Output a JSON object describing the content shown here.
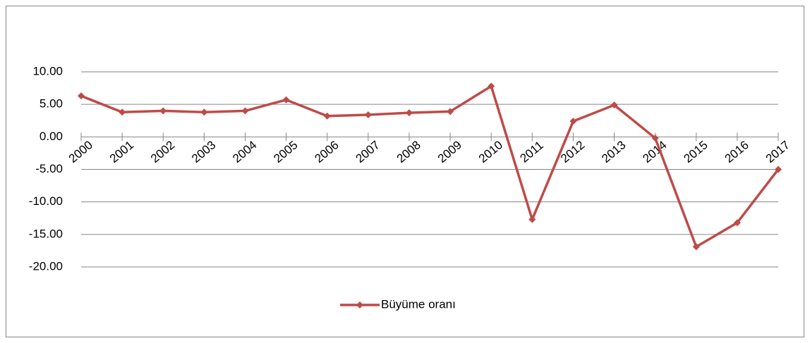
{
  "chart_data": {
    "type": "line",
    "categories": [
      "2000",
      "2001",
      "2002",
      "2003",
      "2004",
      "2005",
      "2006",
      "2007",
      "2008",
      "2009",
      "2010",
      "2011",
      "2012",
      "2013",
      "2014",
      "2015",
      "2016",
      "2017"
    ],
    "series": [
      {
        "name": "Büyüme oranı",
        "color": "#be4b48",
        "values": [
          6.3,
          3.8,
          4.0,
          3.8,
          4.0,
          5.7,
          3.2,
          3.4,
          3.7,
          3.9,
          7.8,
          -12.7,
          2.4,
          4.9,
          -0.2,
          -16.9,
          -13.2,
          -5.0
        ]
      }
    ],
    "ylim": [
      -20,
      10
    ],
    "yticks": [
      {
        "value": -20,
        "label": "-20.00"
      },
      {
        "value": -15,
        "label": "-15.00"
      },
      {
        "value": -10,
        "label": "-10.00"
      },
      {
        "value": -5,
        "label": "-5.00"
      },
      {
        "value": 0,
        "label": "0.00"
      },
      {
        "value": 5,
        "label": "5.00"
      },
      {
        "value": 10,
        "label": "10.00"
      }
    ],
    "grid": true,
    "legend": "bottom"
  }
}
